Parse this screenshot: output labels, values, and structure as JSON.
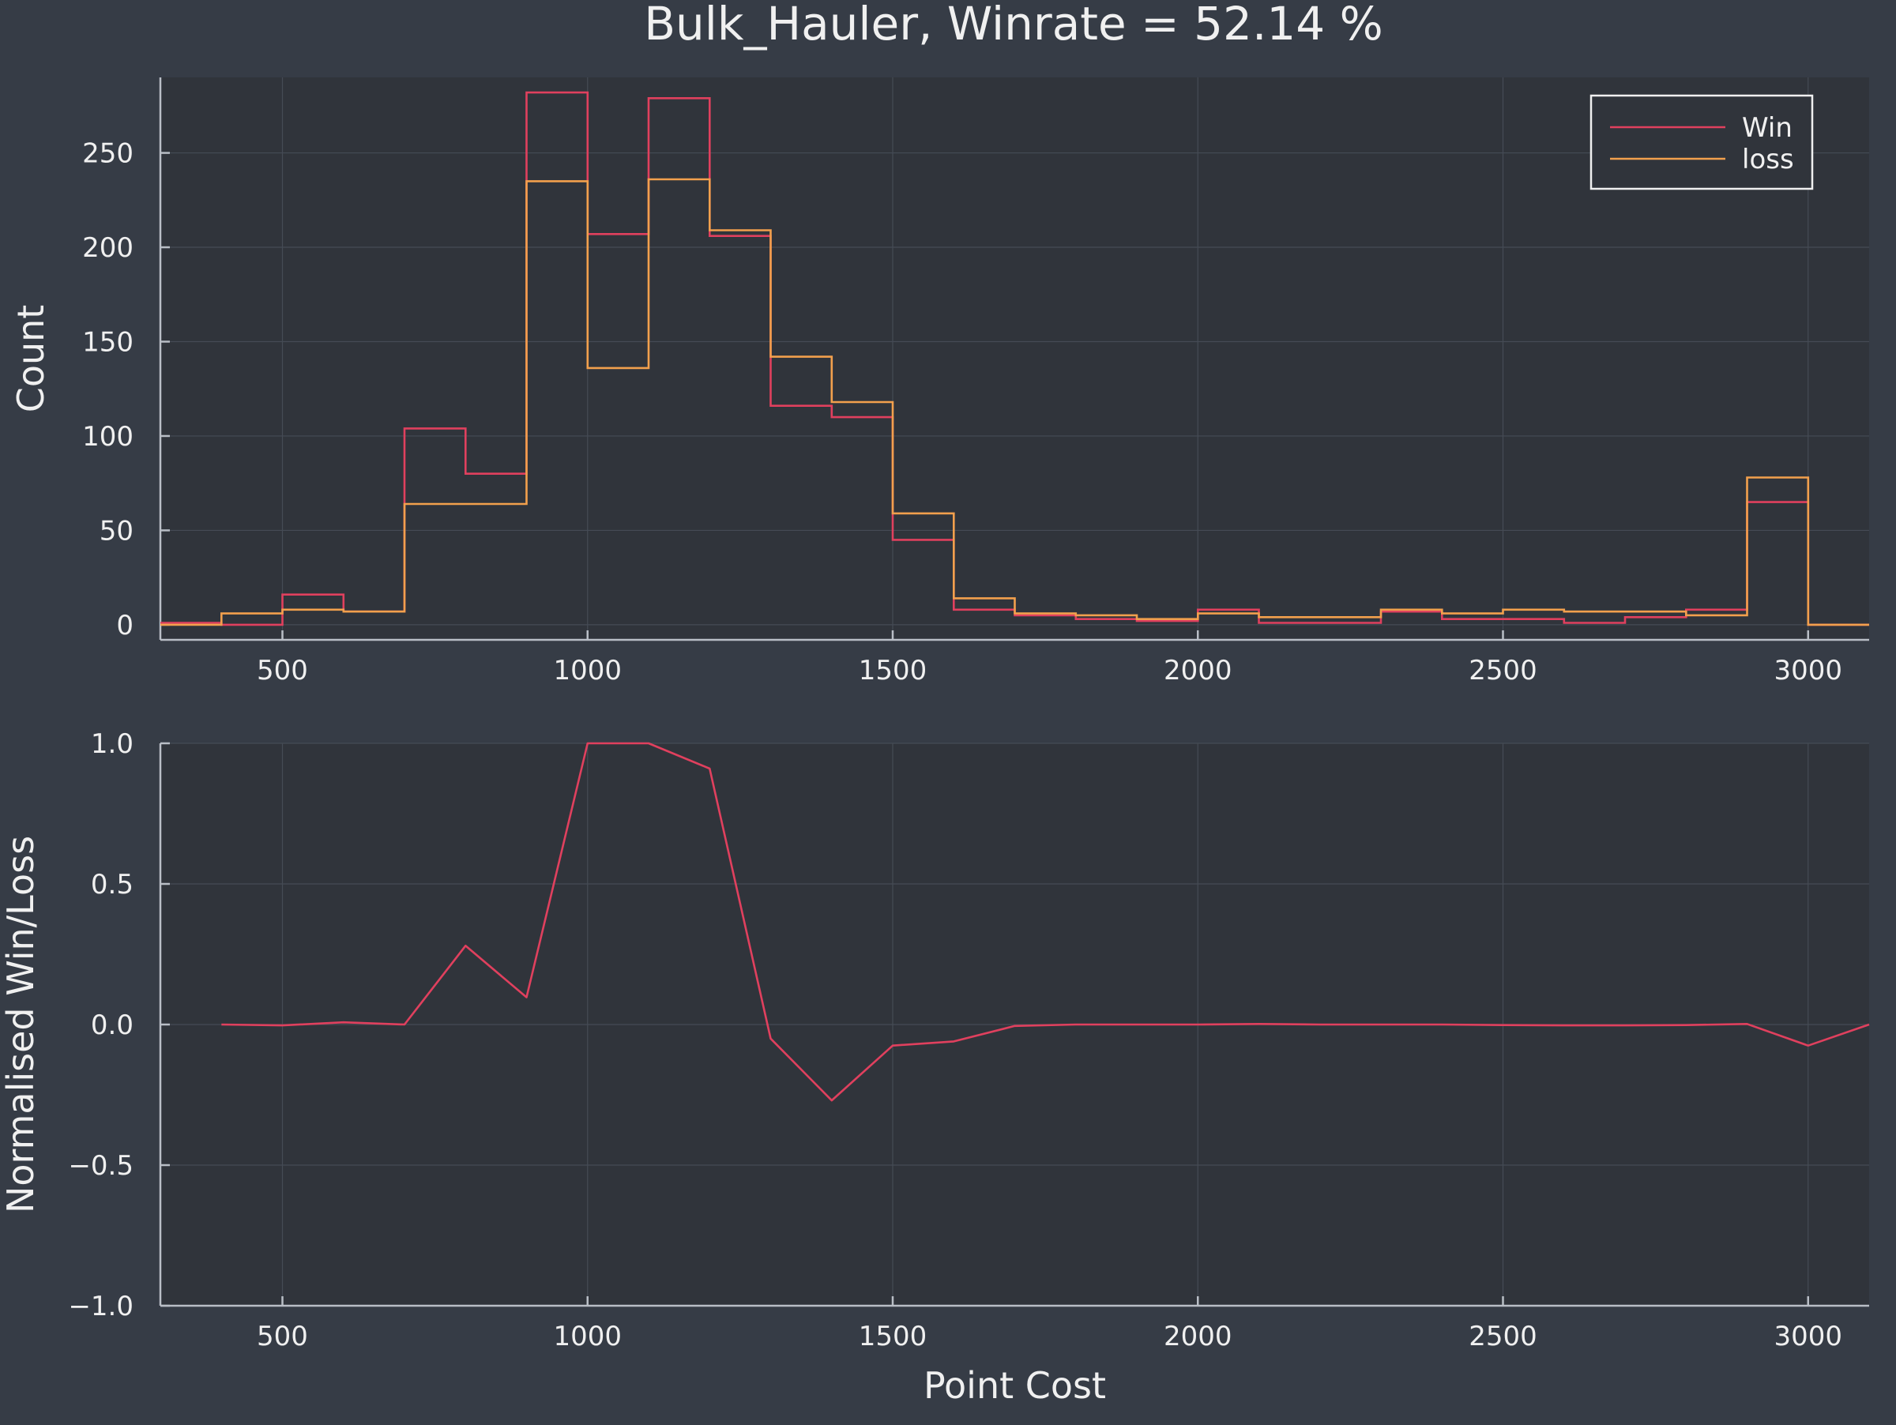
{
  "title": "Bulk_Hauler, Winrate = 52.14 %",
  "colors": {
    "background": "#363c46",
    "plot_background": "#30343b",
    "grid": "#454b55",
    "axis": "#b9bec6",
    "text": "#f0f0f0",
    "win": "#e0405e",
    "loss": "#f2a04d"
  },
  "chart_data": [
    {
      "type": "histogram-step",
      "title": "",
      "xlabel": "",
      "ylabel": "Count",
      "xlim": [
        300,
        3100
      ],
      "ylim": [
        -8,
        290
      ],
      "xticks": [
        500,
        1000,
        1500,
        2000,
        2500,
        3000
      ],
      "yticks": [
        0,
        50,
        100,
        150,
        200,
        250
      ],
      "grid": true,
      "legend": {
        "placement": "top-right",
        "entries": [
          "Win",
          "loss"
        ]
      },
      "bin_edges": [
        300,
        400,
        500,
        600,
        700,
        800,
        900,
        1000,
        1100,
        1200,
        1300,
        1400,
        1500,
        1600,
        1700,
        1800,
        1900,
        2000,
        2100,
        2200,
        2300,
        2400,
        2500,
        2600,
        2700,
        2800,
        2900,
        3000,
        3100
      ],
      "series": [
        {
          "name": "Win",
          "color": "#e0405e",
          "values": [
            1,
            0,
            16,
            7,
            104,
            80,
            282,
            207,
            279,
            206,
            116,
            110,
            45,
            8,
            5,
            3,
            2,
            8,
            1,
            1,
            7,
            3,
            3,
            1,
            4,
            8,
            65,
            0
          ]
        },
        {
          "name": "loss",
          "color": "#f2a04d",
          "values": [
            0,
            6,
            8,
            7,
            64,
            64,
            235,
            136,
            236,
            209,
            142,
            118,
            59,
            14,
            6,
            5,
            3,
            6,
            4,
            4,
            8,
            6,
            8,
            7,
            7,
            5,
            78,
            0
          ]
        }
      ]
    },
    {
      "type": "line",
      "title": "",
      "xlabel": "Point Cost",
      "ylabel": "Normalised Win/Loss",
      "xlim": [
        300,
        3100
      ],
      "ylim": [
        -1.0,
        1.0
      ],
      "xticks": [
        500,
        1000,
        1500,
        2000,
        2500,
        3000
      ],
      "yticks": [
        -1.0,
        -0.5,
        0.0,
        0.5,
        1.0
      ],
      "ytick_labels": [
        "−1.0",
        "−0.5",
        "0.0",
        "0.5",
        "1.0"
      ],
      "grid": true,
      "series": [
        {
          "color": "#e0405e",
          "x": [
            400,
            500,
            600,
            700,
            800,
            900,
            1000,
            1100,
            1200,
            1300,
            1400,
            1500,
            1600,
            1700,
            1800,
            1900,
            2000,
            2100,
            2200,
            2300,
            2400,
            2500,
            2600,
            2700,
            2800,
            2900,
            3000,
            3100
          ],
          "y": [
            0.0,
            -0.003,
            0.008,
            0.0,
            0.28,
            0.097,
            1.0,
            1.0,
            0.91,
            -0.05,
            -0.27,
            -0.075,
            -0.06,
            -0.005,
            0.0,
            0.0,
            0.0,
            0.002,
            0.0,
            0.0,
            0.0,
            -0.002,
            -0.003,
            -0.003,
            -0.002,
            0.002,
            -0.075,
            0.0
          ]
        }
      ]
    }
  ]
}
